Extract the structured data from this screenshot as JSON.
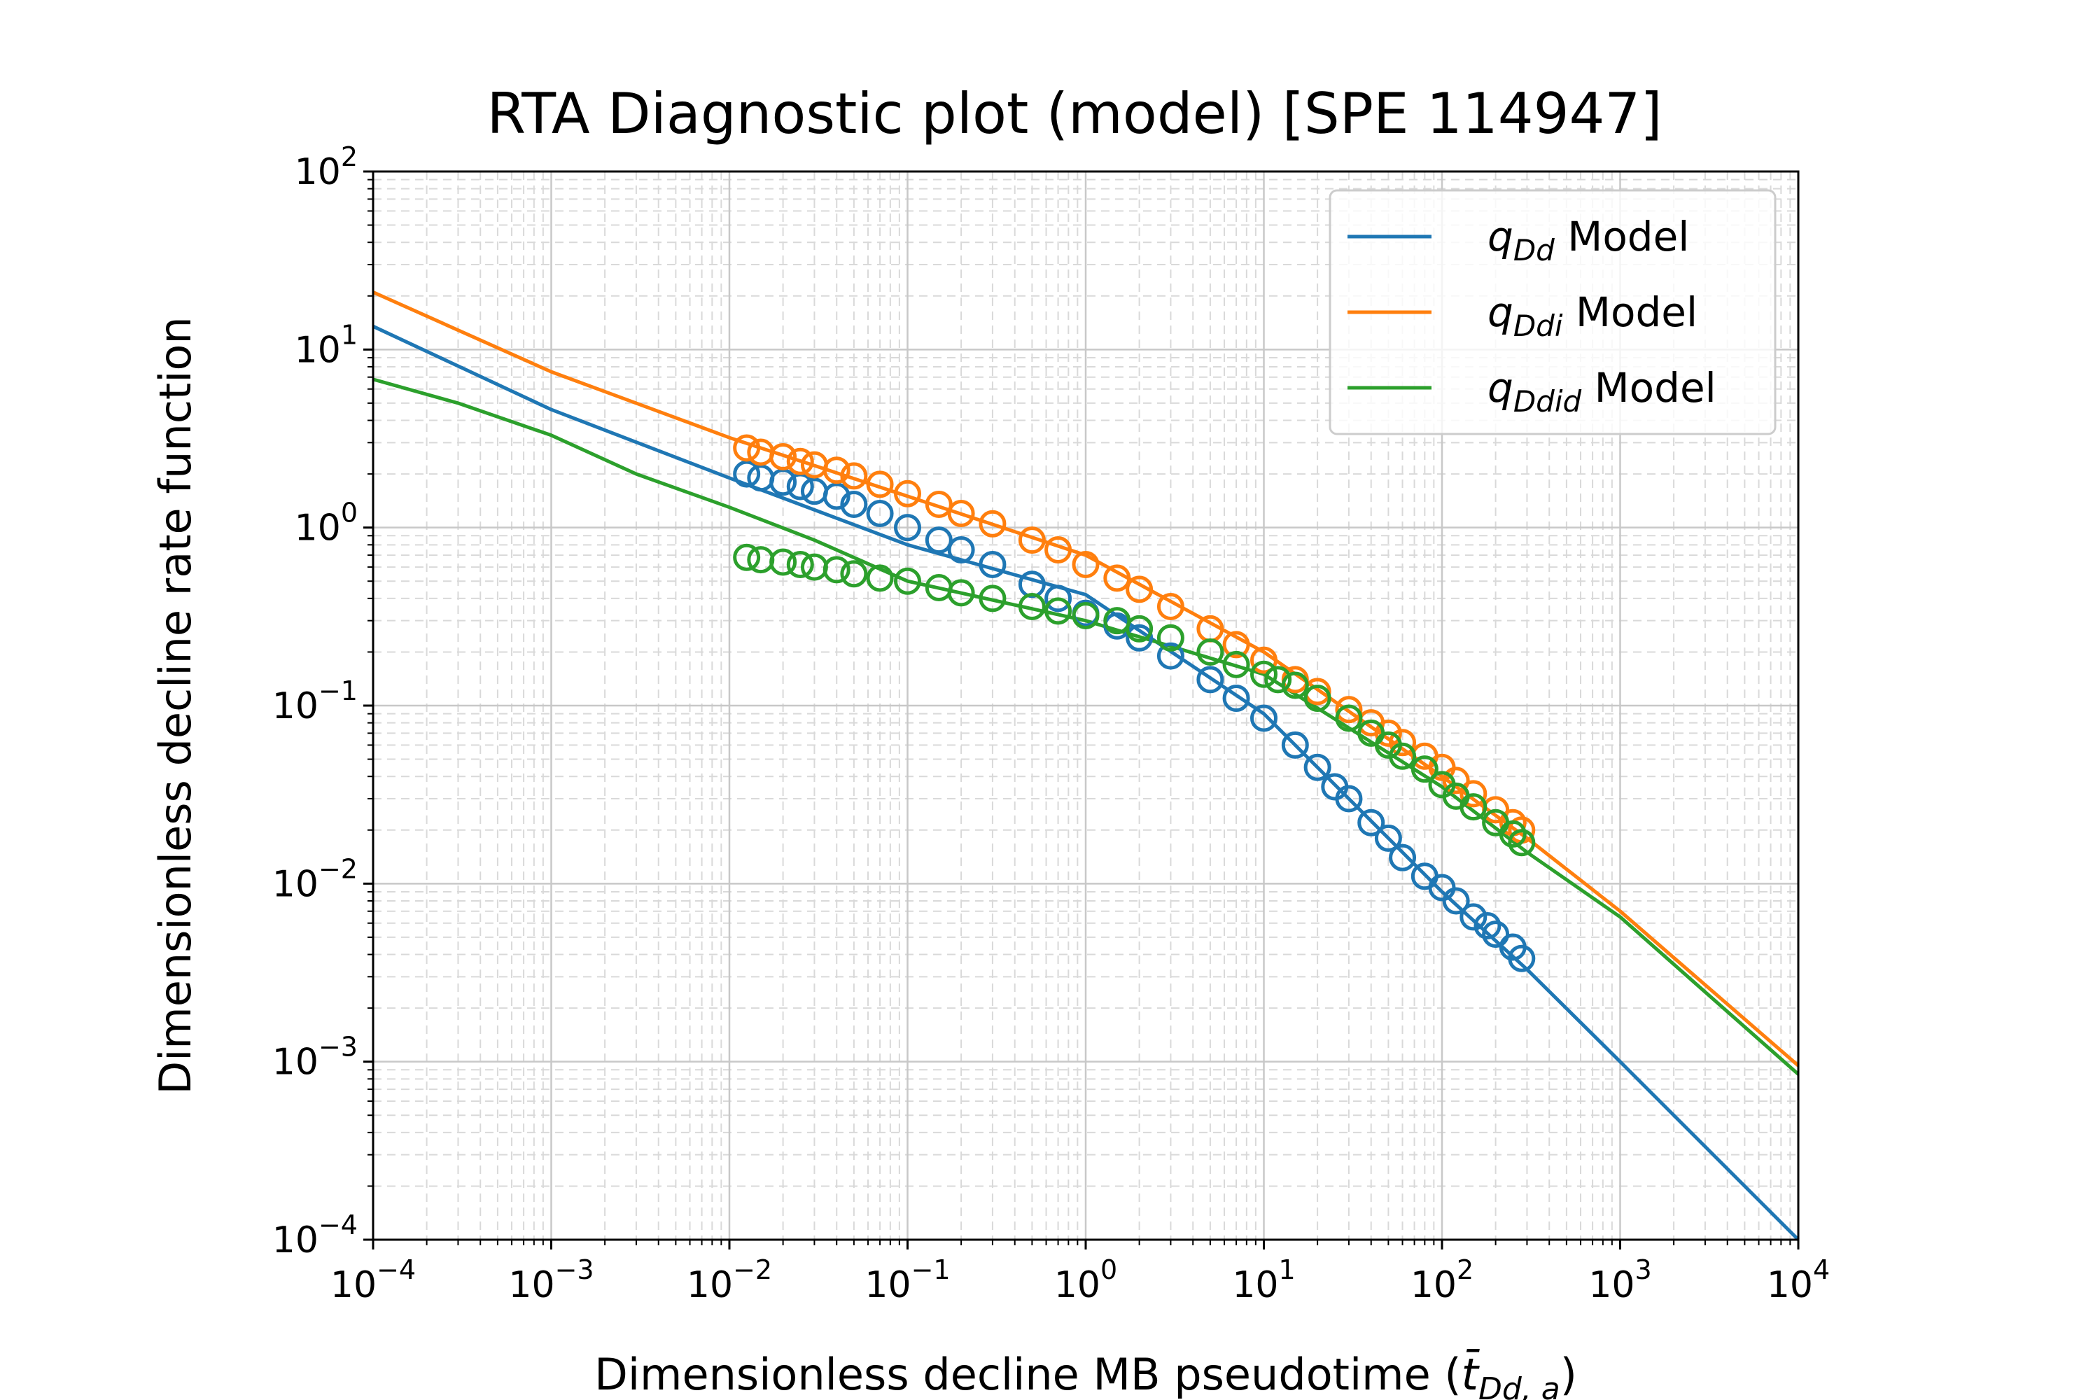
{
  "chart_data": {
    "type": "line",
    "title": "RTA Diagnostic plot (model) [SPE 114947]",
    "xlabel": "Dimensionless decline MB pseudotime (t̄Dd, a)",
    "xlabel_parts": {
      "prefix": "Dimensionless decline MB pseudotime (",
      "symbol": "t̄",
      "subscript": "Dd, a",
      "suffix": ")"
    },
    "ylabel": "Dimensionless decline rate function",
    "x_scale": "log",
    "y_scale": "log",
    "xlim": [
      0.0001,
      10000
    ],
    "ylim": [
      0.0001,
      100
    ],
    "x_ticks": [
      {
        "base": "10",
        "exp": "−4",
        "value": 0.0001
      },
      {
        "base": "10",
        "exp": "−3",
        "value": 0.001
      },
      {
        "base": "10",
        "exp": "−2",
        "value": 0.01
      },
      {
        "base": "10",
        "exp": "−1",
        "value": 0.1
      },
      {
        "base": "10",
        "exp": "0",
        "value": 1
      },
      {
        "base": "10",
        "exp": "1",
        "value": 10
      },
      {
        "base": "10",
        "exp": "2",
        "value": 100
      },
      {
        "base": "10",
        "exp": "3",
        "value": 1000
      },
      {
        "base": "10",
        "exp": "4",
        "value": 10000
      }
    ],
    "y_ticks": [
      {
        "base": "10",
        "exp": "−4",
        "value": 0.0001
      },
      {
        "base": "10",
        "exp": "−3",
        "value": 0.001
      },
      {
        "base": "10",
        "exp": "−2",
        "value": 0.01
      },
      {
        "base": "10",
        "exp": "−1",
        "value": 0.1
      },
      {
        "base": "10",
        "exp": "0",
        "value": 1
      },
      {
        "base": "10",
        "exp": "1",
        "value": 10
      },
      {
        "base": "10",
        "exp": "2",
        "value": 100
      }
    ],
    "grid": true,
    "legend_position": "top-right",
    "series": [
      {
        "name": "qDd Model",
        "legend_symbol": "q",
        "legend_subscript": "Dd",
        "legend_suffix": " Model",
        "color": "#1f77b4",
        "line": {
          "x": [
            0.0001,
            0.001,
            0.01,
            0.1,
            1,
            10,
            30,
            100,
            300,
            1000,
            10000
          ],
          "y": [
            13.5,
            4.6,
            1.9,
            0.8,
            0.42,
            0.09,
            0.03,
            0.009,
            0.0033,
            0.001,
            0.0001
          ]
        },
        "markers": {
          "x": [
            0.0125,
            0.015,
            0.02,
            0.025,
            0.03,
            0.04,
            0.05,
            0.07,
            0.1,
            0.15,
            0.2,
            0.3,
            0.5,
            0.7,
            1.0,
            1.5,
            2.0,
            3.0,
            5.0,
            7.0,
            10,
            15,
            20,
            25,
            30,
            40,
            50,
            60,
            80,
            100,
            120,
            150,
            180,
            200,
            250,
            280
          ],
          "y": [
            2.0,
            1.9,
            1.8,
            1.7,
            1.6,
            1.5,
            1.35,
            1.2,
            1.0,
            0.85,
            0.75,
            0.62,
            0.48,
            0.4,
            0.33,
            0.28,
            0.24,
            0.19,
            0.14,
            0.11,
            0.085,
            0.06,
            0.045,
            0.035,
            0.03,
            0.022,
            0.018,
            0.014,
            0.011,
            0.0095,
            0.008,
            0.0065,
            0.0058,
            0.0052,
            0.0044,
            0.0038
          ]
        }
      },
      {
        "name": "qDdi Model",
        "legend_symbol": "q",
        "legend_subscript": "Ddi",
        "legend_suffix": " Model",
        "color": "#ff7f0e",
        "line": {
          "x": [
            0.0001,
            0.001,
            0.01,
            0.1,
            1,
            10,
            100,
            300,
            1000,
            10000
          ],
          "y": [
            21,
            7.5,
            3.2,
            1.5,
            0.7,
            0.2,
            0.04,
            0.018,
            0.007,
            0.00095
          ]
        },
        "markers": {
          "x": [
            0.0125,
            0.015,
            0.02,
            0.025,
            0.03,
            0.04,
            0.05,
            0.07,
            0.1,
            0.15,
            0.2,
            0.3,
            0.5,
            0.7,
            1.0,
            1.5,
            2.0,
            3.0,
            5.0,
            7.0,
            10,
            15,
            20,
            30,
            40,
            50,
            60,
            80,
            100,
            120,
            150,
            200,
            250,
            280
          ],
          "y": [
            2.8,
            2.65,
            2.5,
            2.35,
            2.25,
            2.1,
            1.95,
            1.75,
            1.55,
            1.35,
            1.2,
            1.05,
            0.85,
            0.75,
            0.62,
            0.52,
            0.45,
            0.36,
            0.27,
            0.22,
            0.18,
            0.14,
            0.12,
            0.095,
            0.08,
            0.07,
            0.062,
            0.052,
            0.045,
            0.038,
            0.032,
            0.026,
            0.022,
            0.02
          ]
        }
      },
      {
        "name": "qDdid Model",
        "legend_symbol": "q",
        "legend_subscript": "Ddid",
        "legend_suffix": " Model",
        "color": "#2ca02c",
        "line": {
          "x": [
            0.0001,
            0.0003,
            0.001,
            0.003,
            0.01,
            0.03,
            0.1,
            1,
            10,
            100,
            300,
            1000,
            10000
          ],
          "y": [
            6.8,
            5.0,
            3.3,
            2.0,
            1.3,
            0.85,
            0.5,
            0.3,
            0.15,
            0.035,
            0.015,
            0.0065,
            0.00085
          ]
        },
        "markers": {
          "x": [
            0.0125,
            0.015,
            0.02,
            0.025,
            0.03,
            0.04,
            0.05,
            0.07,
            0.1,
            0.15,
            0.2,
            0.3,
            0.5,
            0.7,
            1.0,
            1.5,
            2.0,
            3.0,
            5.0,
            7.0,
            10,
            12,
            15,
            20,
            30,
            40,
            50,
            60,
            80,
            100,
            120,
            150,
            200,
            250,
            280
          ],
          "y": [
            0.68,
            0.66,
            0.64,
            0.62,
            0.6,
            0.58,
            0.55,
            0.52,
            0.5,
            0.46,
            0.43,
            0.4,
            0.36,
            0.34,
            0.32,
            0.3,
            0.27,
            0.24,
            0.2,
            0.17,
            0.15,
            0.14,
            0.13,
            0.11,
            0.085,
            0.07,
            0.06,
            0.052,
            0.044,
            0.036,
            0.031,
            0.027,
            0.022,
            0.019,
            0.017
          ]
        }
      }
    ]
  }
}
